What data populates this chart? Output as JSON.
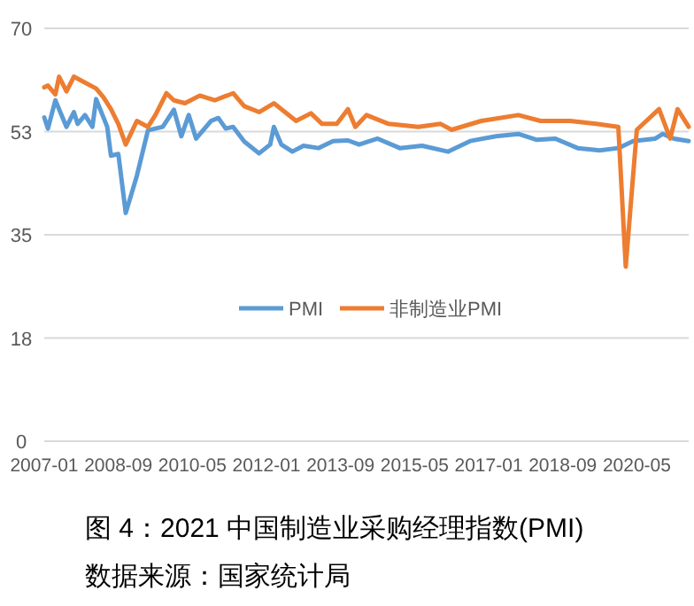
{
  "chart_data": {
    "type": "line",
    "annotations": [
      "图 4：2021 中国制造业采购经理指数(PMI)",
      "数据来源：国家统计局"
    ],
    "xlim": [
      "2007-01",
      "2021-07"
    ],
    "xticks": [
      "2007-01",
      "2008-09",
      "2010-05",
      "2012-01",
      "2013-09",
      "2015-05",
      "2017-01",
      "2018-09",
      "2020-05"
    ],
    "ylim": [
      0,
      70
    ],
    "yticks": [
      0,
      {
        "value": 17.5,
        "label": "18"
      },
      35,
      {
        "value": 52.5,
        "label": "53"
      },
      70
    ],
    "grid": "y",
    "legend": "bottom",
    "series": [
      {
        "name": "PMI",
        "color": "#5b9bd5",
        "x": [
          "2007-01",
          "2007-02",
          "2007-04",
          "2007-07",
          "2007-09",
          "2007-10",
          "2007-12",
          "2008-02",
          "2008-03",
          "2008-06",
          "2008-07",
          "2008-09",
          "2008-11",
          "2009-02",
          "2009-05",
          "2009-09",
          "2009-12",
          "2010-02",
          "2010-04",
          "2010-06",
          "2010-10",
          "2010-12",
          "2011-02",
          "2011-04",
          "2011-07",
          "2011-11",
          "2012-02",
          "2012-03",
          "2012-05",
          "2012-08",
          "2012-11",
          "2013-03",
          "2013-07",
          "2013-11",
          "2014-02",
          "2014-07",
          "2015-01",
          "2015-07",
          "2016-02",
          "2016-08",
          "2017-03",
          "2017-09",
          "2018-02",
          "2018-07",
          "2019-01",
          "2019-07",
          "2019-12",
          "2020-04",
          "2020-10",
          "2020-12",
          "2021-03",
          "2021-07"
        ],
        "values": [
          54.9,
          53,
          57.8,
          53.3,
          55.8,
          53.8,
          55.3,
          53.3,
          58,
          53.3,
          48.4,
          48.7,
          38.7,
          45,
          52.7,
          53.3,
          56.2,
          51.7,
          55.3,
          51.3,
          54.3,
          54.8,
          53,
          53.3,
          50.8,
          48.8,
          50.3,
          53.3,
          50.3,
          49.1,
          50.1,
          49.7,
          50.9,
          51,
          50.3,
          51.3,
          49.7,
          50.1,
          49.1,
          50.9,
          51.7,
          52.1,
          51.1,
          51.3,
          49.7,
          49.3,
          49.7,
          50.9,
          51.3,
          52.1,
          51.3,
          50.9
        ]
      },
      {
        "name": "非制造业PMI",
        "color": "#ed7d31",
        "x": [
          "2007-01",
          "2007-02",
          "2007-04",
          "2007-05",
          "2007-07",
          "2007-09",
          "2007-12",
          "2008-03",
          "2008-05",
          "2008-07",
          "2008-09",
          "2008-11",
          "2009-02",
          "2009-05",
          "2009-07",
          "2009-10",
          "2009-12",
          "2010-03",
          "2010-07",
          "2010-11",
          "2011-04",
          "2011-07",
          "2011-11",
          "2012-03",
          "2012-06",
          "2012-09",
          "2013-01",
          "2013-04",
          "2013-08",
          "2013-11",
          "2014-01",
          "2014-04",
          "2014-10",
          "2015-06",
          "2015-12",
          "2016-03",
          "2016-11",
          "2017-09",
          "2018-03",
          "2018-11",
          "2019-06",
          "2019-12",
          "2020-02",
          "2020-05",
          "2020-11",
          "2021-02",
          "2021-04",
          "2021-07"
        ],
        "values": [
          60,
          60.3,
          58.8,
          61.8,
          59.3,
          61.8,
          60.8,
          59.8,
          58.3,
          56.3,
          53.8,
          50.3,
          54.3,
          53.3,
          55.3,
          59,
          57.8,
          57.3,
          58.6,
          57.8,
          59,
          56.8,
          55.8,
          57.3,
          55.8,
          54.3,
          55.6,
          53.8,
          53.8,
          56.3,
          53.3,
          55.3,
          53.8,
          53.3,
          53.8,
          52.8,
          54.3,
          55.3,
          54.3,
          54.3,
          53.8,
          53.3,
          29.6,
          52.8,
          56.3,
          51.3,
          56.3,
          53.3
        ]
      }
    ]
  }
}
